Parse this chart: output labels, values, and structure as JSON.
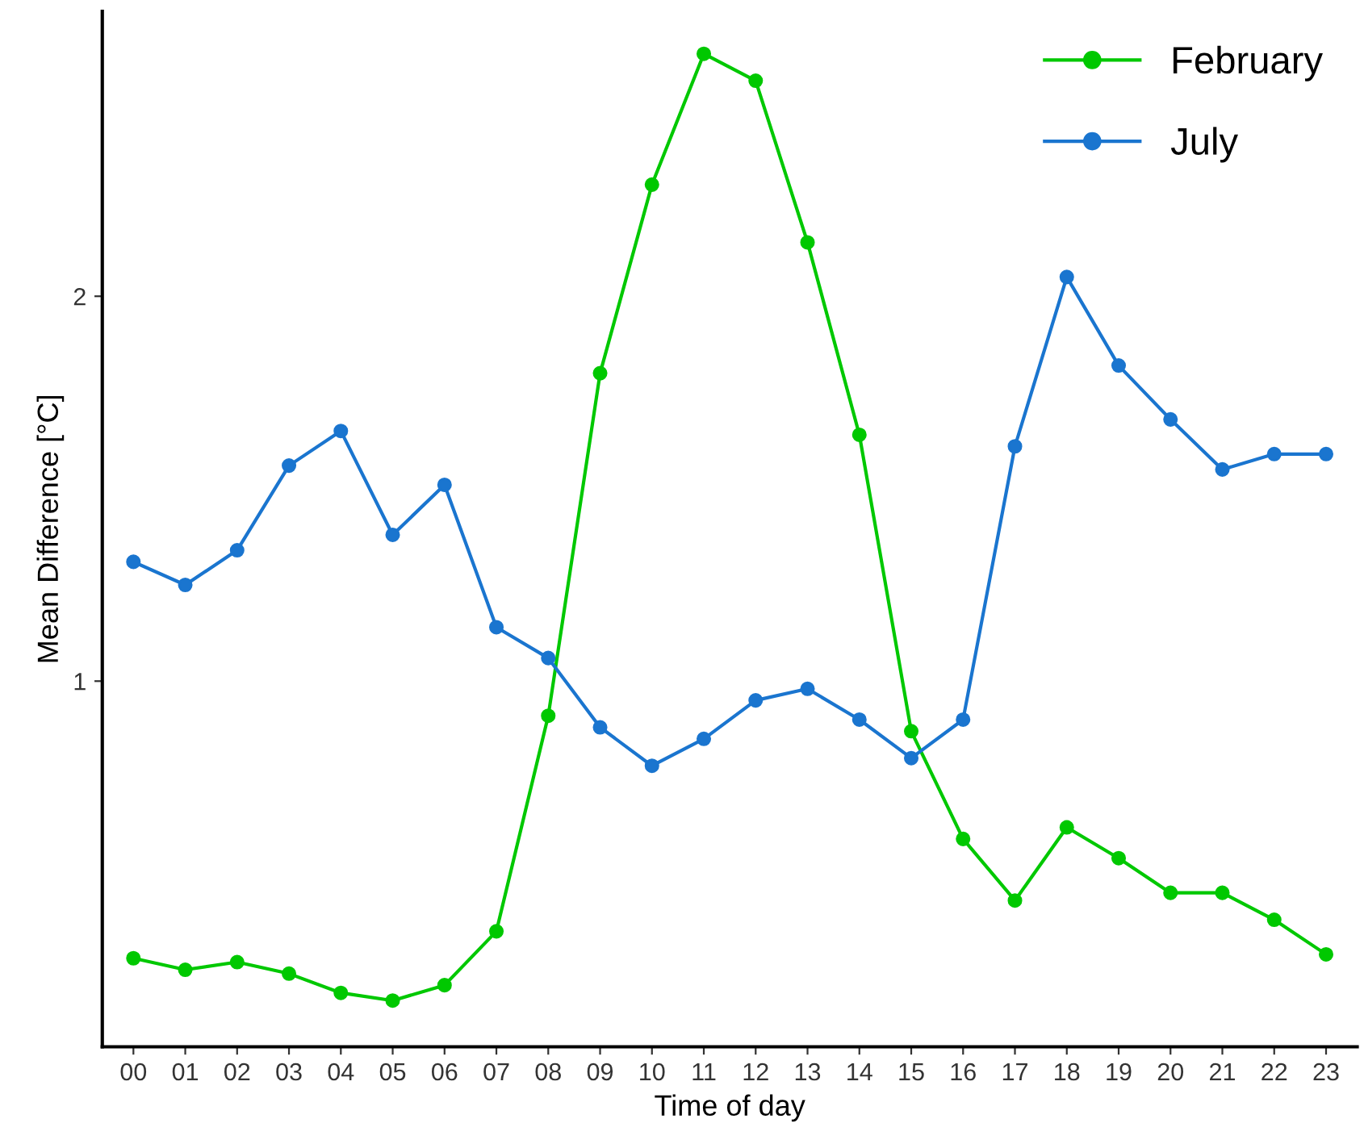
{
  "chart_data": {
    "type": "line",
    "xlabel": "Time of day",
    "ylabel": "Mean Difference [°C]",
    "categories": [
      "00",
      "01",
      "02",
      "03",
      "04",
      "05",
      "06",
      "07",
      "08",
      "09",
      "10",
      "11",
      "12",
      "13",
      "14",
      "15",
      "16",
      "17",
      "18",
      "19",
      "20",
      "21",
      "22",
      "23"
    ],
    "series": [
      {
        "name": "February",
        "color": "#00c800",
        "values": [
          0.28,
          0.25,
          0.27,
          0.24,
          0.19,
          0.17,
          0.21,
          0.35,
          0.91,
          1.8,
          2.29,
          2.63,
          2.56,
          2.14,
          1.64,
          0.87,
          0.59,
          0.43,
          0.62,
          0.54,
          0.45,
          0.45,
          0.38,
          0.29
        ]
      },
      {
        "name": "July",
        "color": "#1a75cf",
        "values": [
          1.31,
          1.25,
          1.34,
          1.56,
          1.65,
          1.38,
          1.51,
          1.14,
          1.06,
          0.88,
          0.78,
          0.85,
          0.95,
          0.98,
          0.9,
          0.8,
          0.9,
          1.61,
          2.05,
          1.82,
          1.68,
          1.55,
          1.59,
          1.59
        ]
      }
    ],
    "ylim": [
      0.05,
      2.74
    ],
    "yticks": [
      1,
      2
    ],
    "grid": false,
    "legend": "top right",
    "marker": "circle",
    "line_style": "solid"
  }
}
